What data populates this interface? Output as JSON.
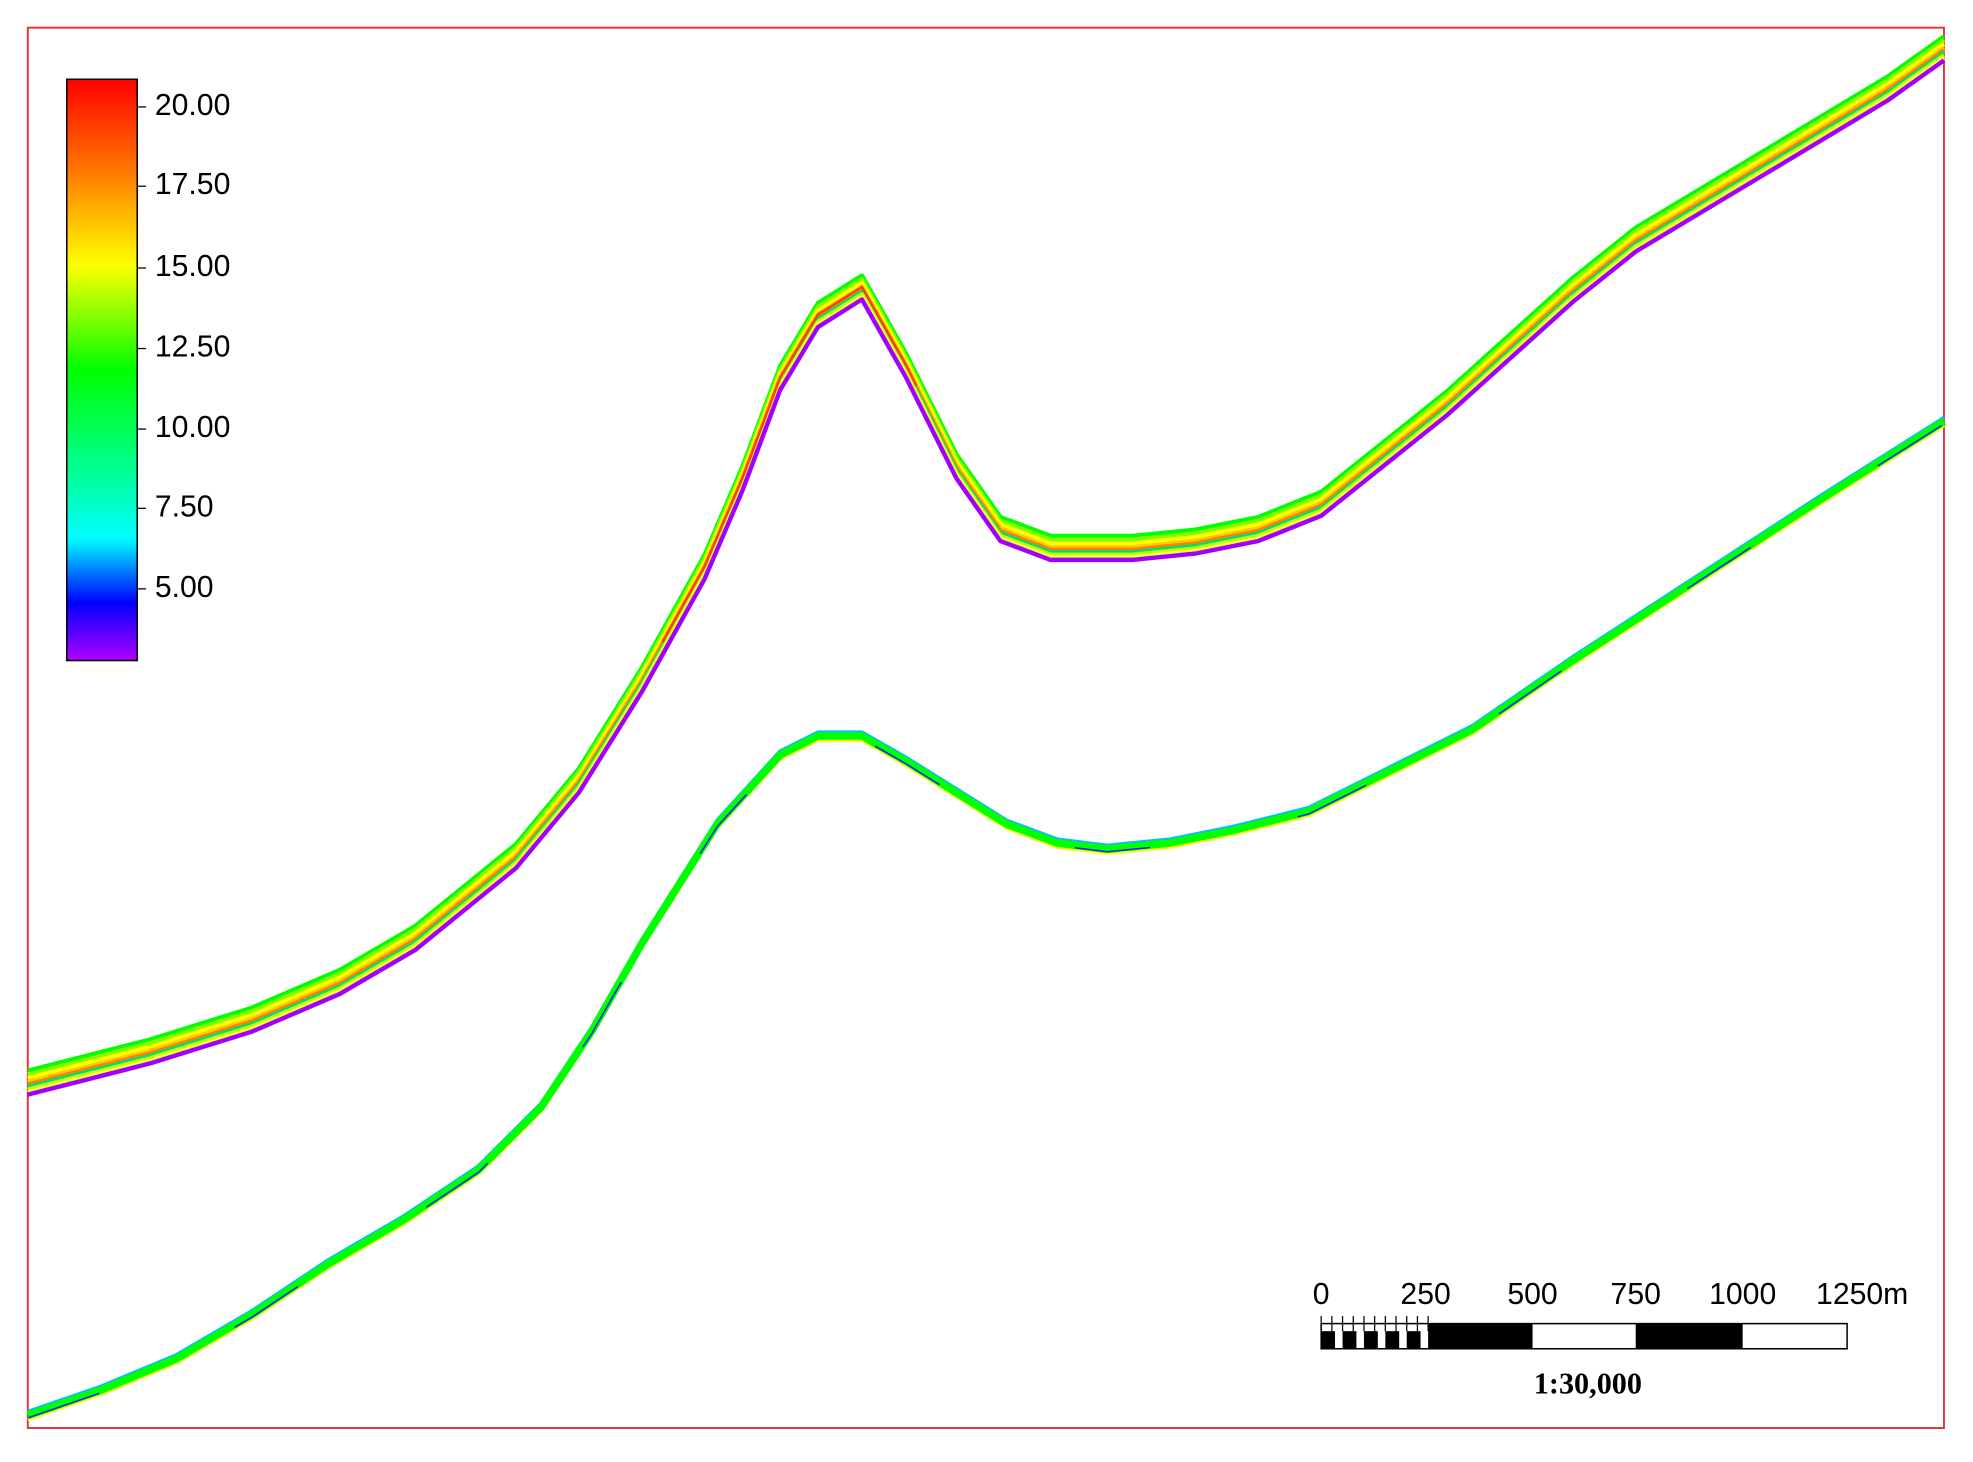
{
  "colorbar": {
    "labels": [
      "20.00",
      "17.50",
      "15.00",
      "12.50",
      "10.00",
      "7.50",
      "5.00"
    ]
  },
  "scale_bar": {
    "labels": [
      "0",
      "250",
      "500",
      "750",
      "1000",
      "1250m"
    ],
    "ratio": "1:30,000"
  }
}
